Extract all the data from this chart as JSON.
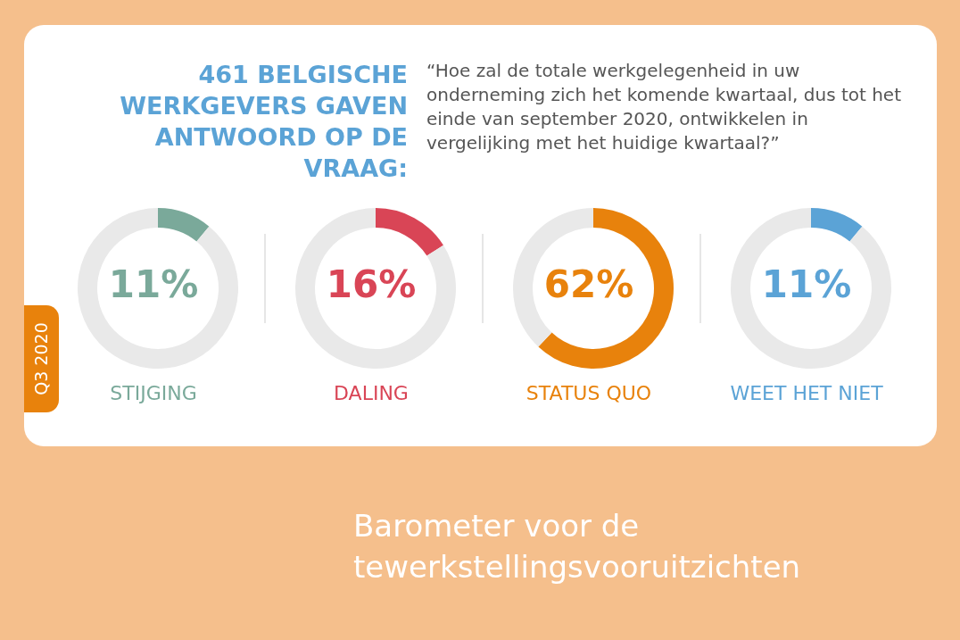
{
  "chart_data": [
    {
      "type": "other",
      "title": "461 BELGISCHE WERKGEVERS GAVEN ANTWOORD OP DE VRAAG:",
      "subtitle": "“Hoe zal de totale werkgelegenheid in uw onderneming zich het komende kwartaal, dus tot het einde van september 2020, ontwikkelen in vergelijking met het huidige kwartaal?”",
      "annotations": [
        "Q3 2020",
        "Barometer voor de tewerkstellingsvooruitzichten"
      ]
    },
    {
      "type": "donut",
      "title": "STIJGING",
      "categories": [
        null,
        null
      ],
      "values": [
        11,
        89
      ],
      "colors": [
        "#7aa99a",
        "#e9e9e9"
      ],
      "annotations": [
        "11%"
      ]
    },
    {
      "type": "donut",
      "title": "DALING",
      "categories": [
        null,
        null
      ],
      "values": [
        16,
        84
      ],
      "colors": [
        "#d94556",
        "#e9e9e9"
      ],
      "annotations": [
        "16%"
      ]
    },
    {
      "type": "donut",
      "title": "STATUS QUO",
      "categories": [
        null,
        null
      ],
      "values": [
        62,
        38
      ],
      "colors": [
        "#e8820c",
        "#e9e9e9"
      ],
      "annotations": [
        "62%"
      ]
    },
    {
      "type": "donut",
      "title": "WEET HET NIET",
      "categories": [
        null,
        null
      ],
      "values": [
        11,
        89
      ],
      "colors": [
        "#5ba3d6",
        "#e9e9e9"
      ],
      "annotations": [
        "11%"
      ]
    }
  ]
}
